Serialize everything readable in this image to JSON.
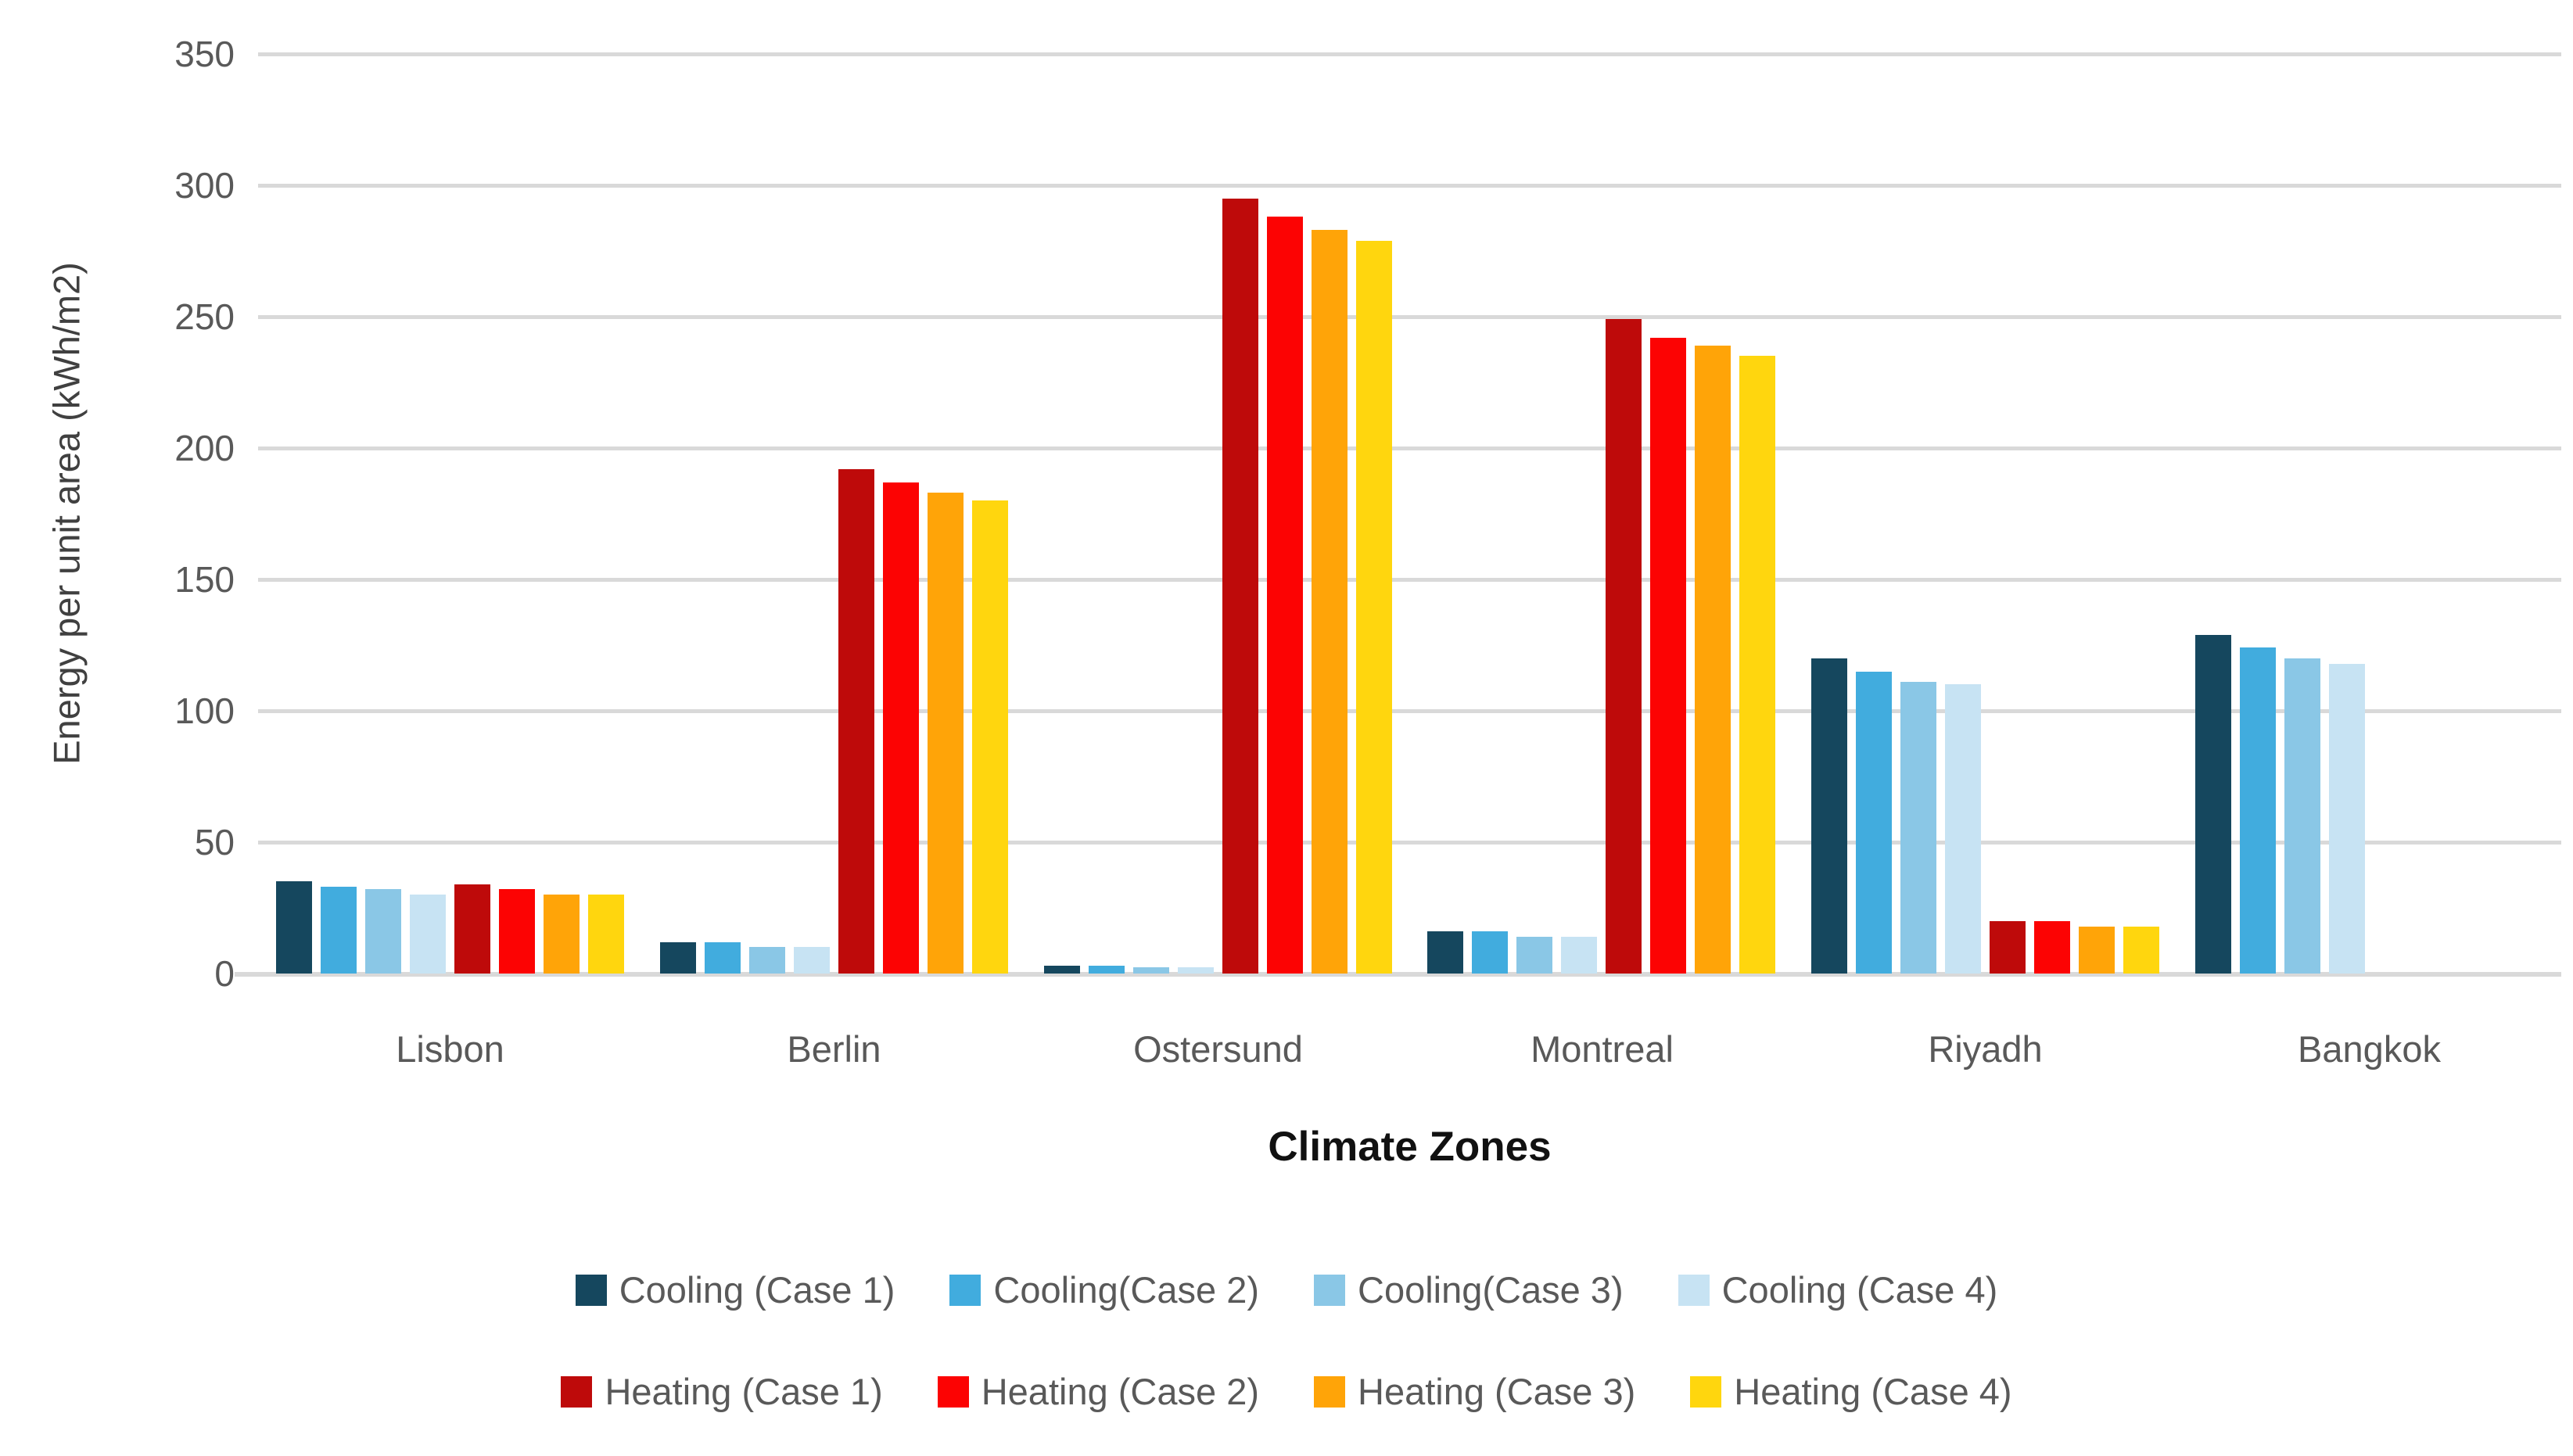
{
  "chart_data": {
    "type": "bar",
    "title": "",
    "xlabel": "Climate Zones",
    "ylabel": "Energy per unit area (kWh/m2)",
    "ylim": [
      0,
      350
    ],
    "yticks": [
      0,
      50,
      100,
      150,
      200,
      250,
      300,
      350
    ],
    "grid": true,
    "grid_color": "#d9d9d9",
    "axis_text_color": "#595959",
    "legend_position": "bottom",
    "legend_rows": [
      [
        0,
        1,
        2,
        3
      ],
      [
        4,
        5,
        6,
        7
      ]
    ],
    "categories": [
      "Lisbon",
      "Berlin",
      "Ostersund",
      "Montreal",
      "Riyadh",
      "Bangkok"
    ],
    "series": [
      {
        "name": "Cooling (Case 1)",
        "color": "#15475E",
        "values": [
          35,
          12,
          3,
          16,
          120,
          129
        ]
      },
      {
        "name": "Cooling(Case 2)",
        "color": "#41ACDE",
        "values": [
          33,
          12,
          3,
          16,
          115,
          124
        ]
      },
      {
        "name": "Cooling(Case 3)",
        "color": "#8AC7E6",
        "values": [
          32,
          10,
          2.5,
          14,
          111,
          120
        ]
      },
      {
        "name": "Cooling (Case 4)",
        "color": "#C7E3F3",
        "values": [
          30,
          10,
          2.5,
          14,
          110,
          118
        ]
      },
      {
        "name": "Heating (Case 1)",
        "color": "#BE0A0A",
        "values": [
          34,
          192,
          295,
          249,
          20,
          0
        ]
      },
      {
        "name": "Heating (Case 2)",
        "color": "#FC0303",
        "values": [
          32,
          187,
          288,
          242,
          20,
          0
        ]
      },
      {
        "name": "Heating (Case 3)",
        "color": "#FFA408",
        "values": [
          30,
          183,
          283,
          239,
          18,
          0
        ]
      },
      {
        "name": "Heating (Case 4)",
        "color": "#FFD60E",
        "values": [
          30,
          180,
          279,
          235,
          18,
          0
        ]
      }
    ]
  }
}
